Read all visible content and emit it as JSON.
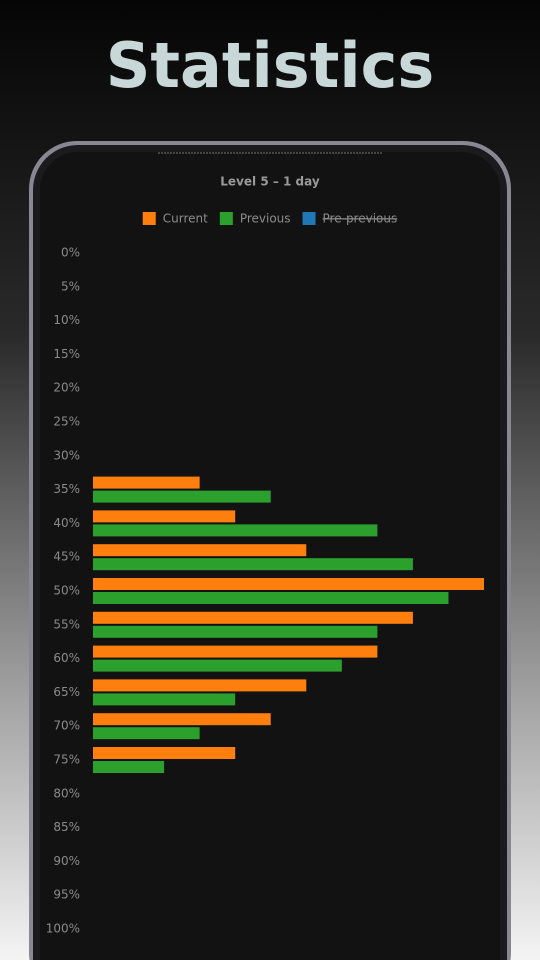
{
  "header": {
    "title": "Statistics"
  },
  "chart_data": {
    "type": "bar",
    "orientation": "horizontal",
    "title": "Level 5 – 1 day",
    "categories": [
      "0%",
      "5%",
      "10%",
      "15%",
      "20%",
      "25%",
      "30%",
      "35%",
      "40%",
      "45%",
      "50%",
      "55%",
      "60%",
      "65%",
      "70%",
      "75%",
      "80%",
      "85%",
      "90%",
      "95%",
      "100%"
    ],
    "series": [
      {
        "name": "Current",
        "color": "#ff7f0e",
        "values": [
          0,
          0,
          0,
          0,
          0,
          0,
          0,
          3,
          4,
          6,
          11,
          9,
          8,
          6,
          5,
          4,
          0,
          0,
          0,
          0,
          0
        ]
      },
      {
        "name": "Previous",
        "color": "#2ca02c",
        "values": [
          0,
          0,
          0,
          0,
          0,
          0,
          0,
          5,
          8,
          9,
          10,
          8,
          7,
          4,
          3,
          2,
          0,
          0,
          0,
          0,
          0
        ]
      },
      {
        "name": "Pre-previous",
        "color": "#1f77b4",
        "hidden": true
      }
    ],
    "xlim": [
      0,
      11
    ],
    "legend": "top"
  }
}
